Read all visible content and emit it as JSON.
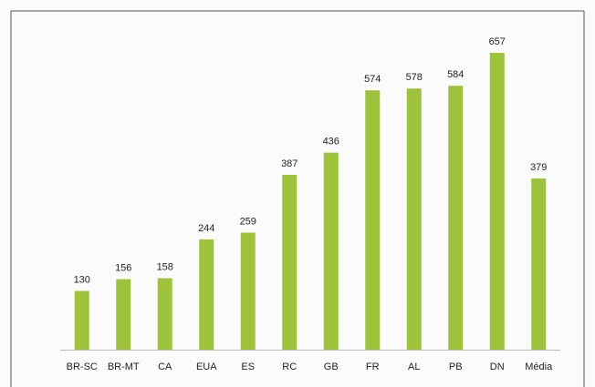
{
  "chart_data": {
    "type": "bar",
    "categories": [
      "BR-SC",
      "BR-MT",
      "CA",
      "EUA",
      "ES",
      "RC",
      "GB",
      "FR",
      "AL",
      "PB",
      "DN",
      "Média"
    ],
    "values": [
      130,
      156,
      158,
      244,
      259,
      387,
      436,
      574,
      578,
      584,
      657,
      379
    ],
    "color": "#9dc33b"
  }
}
